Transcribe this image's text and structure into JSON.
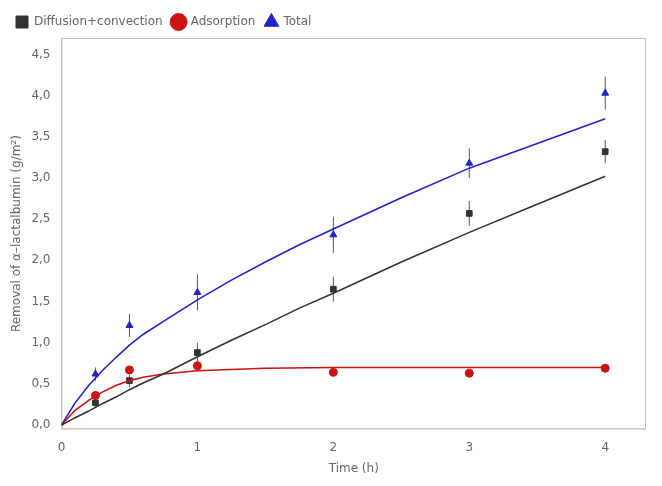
{
  "chart_data": {
    "type": "scatter",
    "xlabel": "Time (h)",
    "ylabel": "Removal of α–lactalbumin (g/m²)",
    "xlim": [
      0,
      4.3
    ],
    "ylim": [
      -0.05,
      4.7
    ],
    "xticks": [
      0,
      1,
      2,
      3,
      4
    ],
    "yticks": [
      {
        "value": 0.0,
        "label": "0,0"
      },
      {
        "value": 0.5,
        "label": "0,5"
      },
      {
        "value": 1.0,
        "label": "1,0"
      },
      {
        "value": 1.5,
        "label": "1,5"
      },
      {
        "value": 2.0,
        "label": "2,0"
      },
      {
        "value": 2.5,
        "label": "2,5"
      },
      {
        "value": 3.0,
        "label": "3,0"
      },
      {
        "value": 3.5,
        "label": "3,5"
      },
      {
        "value": 4.0,
        "label": "4,0"
      },
      {
        "value": 4.5,
        "label": "4,5"
      }
    ],
    "grid": false,
    "legend": "upper left",
    "series": [
      {
        "type": "line",
        "line_style": "solid",
        "color": "#333333",
        "x": [
          0.0,
          0.1,
          0.2,
          0.3,
          0.4,
          0.5,
          0.6,
          0.75,
          1.0,
          1.25,
          1.5,
          1.75,
          2.0,
          2.5,
          3.0,
          3.5,
          4.0
        ],
        "values": [
          0.0,
          0.09,
          0.17,
          0.26,
          0.34,
          0.43,
          0.51,
          0.62,
          0.83,
          1.03,
          1.22,
          1.42,
          1.6,
          1.98,
          2.34,
          2.68,
          3.02
        ]
      },
      {
        "type": "line",
        "line_style": "solid",
        "color": "#cc1111",
        "x": [
          0.0,
          0.1,
          0.2,
          0.3,
          0.4,
          0.5,
          0.6,
          0.75,
          1.0,
          1.5,
          2.0,
          2.5,
          3.0,
          3.5,
          4.0
        ],
        "values": [
          0.0,
          0.18,
          0.3,
          0.4,
          0.48,
          0.54,
          0.58,
          0.62,
          0.66,
          0.69,
          0.7,
          0.7,
          0.7,
          0.7,
          0.7
        ]
      },
      {
        "type": "line",
        "line_style": "solid",
        "color": "#2222cc",
        "x": [
          0.0,
          0.1,
          0.2,
          0.3,
          0.4,
          0.5,
          0.6,
          0.75,
          1.0,
          1.25,
          1.5,
          1.75,
          2.0,
          2.5,
          3.0,
          3.5,
          4.0
        ],
        "values": [
          0.0,
          0.27,
          0.48,
          0.66,
          0.82,
          0.97,
          1.1,
          1.26,
          1.52,
          1.76,
          1.98,
          2.19,
          2.38,
          2.76,
          3.12,
          3.42,
          3.72
        ]
      },
      {
        "name": "Diffusion+convection",
        "type": "scatter",
        "marker": "square",
        "color": "#333333",
        "x": [
          0.25,
          0.5,
          1.0,
          2.0,
          3.0,
          4.0
        ],
        "values": [
          0.27,
          0.54,
          0.88,
          1.65,
          2.57,
          3.32
        ],
        "yerr": [
          0.06,
          0.08,
          0.12,
          0.15,
          0.15,
          0.14
        ]
      },
      {
        "name": "Adsorption",
        "type": "scatter",
        "marker": "circle",
        "color": "#cc1111",
        "x": [
          0.25,
          0.5,
          1.0,
          2.0,
          3.0,
          4.0
        ],
        "values": [
          0.36,
          0.67,
          0.72,
          0.64,
          0.63,
          0.69
        ],
        "yerr": [
          0.04,
          0.0,
          0.0,
          0.0,
          0.0,
          0.0
        ]
      },
      {
        "name": "Total",
        "type": "scatter",
        "marker": "triangle",
        "color": "#2222cc",
        "x": [
          0.25,
          0.5,
          1.0,
          2.0,
          3.0,
          4.0
        ],
        "values": [
          0.62,
          1.21,
          1.61,
          2.31,
          3.18,
          4.03
        ],
        "yerr": [
          0.08,
          0.14,
          0.22,
          0.22,
          0.18,
          0.2
        ]
      }
    ]
  }
}
